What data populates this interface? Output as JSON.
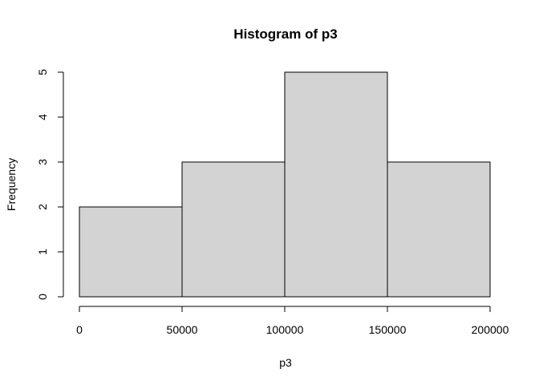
{
  "chart_data": {
    "type": "bar",
    "title": "Histogram of p3",
    "xlabel": "p3",
    "ylabel": "Frequency",
    "bins": [
      {
        "from": 0,
        "to": 50000,
        "count": 2
      },
      {
        "from": 50000,
        "to": 100000,
        "count": 3
      },
      {
        "from": 100000,
        "to": 150000,
        "count": 5
      },
      {
        "from": 150000,
        "to": 200000,
        "count": 3
      }
    ],
    "x_ticks": [
      0,
      50000,
      100000,
      150000,
      200000
    ],
    "y_ticks": [
      0,
      1,
      2,
      3,
      4,
      5
    ],
    "xlim": [
      0,
      200000
    ],
    "ylim": [
      0,
      5
    ],
    "bar_color": "#d3d3d3",
    "border_color": "#000000",
    "grid": false
  }
}
